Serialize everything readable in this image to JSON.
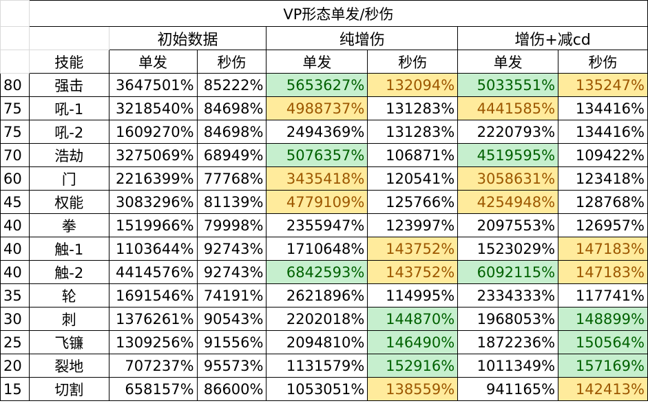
{
  "title": "VP形态单发/秒伤",
  "groups": {
    "initial": "初始数据",
    "pure": "纯增伤",
    "plus_cdr": "增伤+减cd"
  },
  "subheaders": {
    "skill": "技能",
    "single": "单发",
    "dps": "秒伤"
  },
  "colors": {
    "good_bg": "#c6efce",
    "good_fg": "#006100",
    "warn_bg": "#ffeb9c",
    "warn_fg": "#9c5700"
  },
  "rows": [
    {
      "level": "80",
      "skill": "强击",
      "init_single": "3647501%",
      "init_dps": "85222%",
      "pure_single": "5653627%",
      "pure_dps": "132094%",
      "cd_single": "5033551%",
      "cd_dps": "135247%"
    },
    {
      "level": "75",
      "skill": "吼-1",
      "init_single": "3218540%",
      "init_dps": "84698%",
      "pure_single": "4988737%",
      "pure_dps": "131283%",
      "cd_single": "4441585%",
      "cd_dps": "134416%"
    },
    {
      "level": "75",
      "skill": "吼-2",
      "init_single": "1609270%",
      "init_dps": "84698%",
      "pure_single": "2494369%",
      "pure_dps": "131283%",
      "cd_single": "2220793%",
      "cd_dps": "134416%"
    },
    {
      "level": "70",
      "skill": "浩劫",
      "init_single": "3275069%",
      "init_dps": "68949%",
      "pure_single": "5076357%",
      "pure_dps": "106871%",
      "cd_single": "4519595%",
      "cd_dps": "109422%"
    },
    {
      "level": "60",
      "skill": "门",
      "init_single": "2216399%",
      "init_dps": "77768%",
      "pure_single": "3435418%",
      "pure_dps": "120541%",
      "cd_single": "3058631%",
      "cd_dps": "123418%"
    },
    {
      "level": "45",
      "skill": "权能",
      "init_single": "3083296%",
      "init_dps": "81139%",
      "pure_single": "4779109%",
      "pure_dps": "125766%",
      "cd_single": "4254948%",
      "cd_dps": "128768%"
    },
    {
      "level": "40",
      "skill": "拳",
      "init_single": "1519966%",
      "init_dps": "79998%",
      "pure_single": "2355947%",
      "pure_dps": "123997%",
      "cd_single": "2097553%",
      "cd_dps": "126957%"
    },
    {
      "level": "40",
      "skill": "触-1",
      "init_single": "1103644%",
      "init_dps": "92743%",
      "pure_single": "1710648%",
      "pure_dps": "143752%",
      "cd_single": "1523029%",
      "cd_dps": "147183%"
    },
    {
      "level": "40",
      "skill": "触-2",
      "init_single": "4414576%",
      "init_dps": "92743%",
      "pure_single": "6842593%",
      "pure_dps": "143752%",
      "cd_single": "6092115%",
      "cd_dps": "147183%"
    },
    {
      "level": "35",
      "skill": "轮",
      "init_single": "1691546%",
      "init_dps": "74191%",
      "pure_single": "2621896%",
      "pure_dps": "114995%",
      "cd_single": "2334333%",
      "cd_dps": "117741%"
    },
    {
      "level": "30",
      "skill": "刺",
      "init_single": "1376261%",
      "init_dps": "90543%",
      "pure_single": "2202018%",
      "pure_dps": "144870%",
      "cd_single": "1968053%",
      "cd_dps": "148899%"
    },
    {
      "level": "25",
      "skill": "飞镰",
      "init_single": "1309256%",
      "init_dps": "91556%",
      "pure_single": "2094810%",
      "pure_dps": "146490%",
      "cd_single": "1872236%",
      "cd_dps": "150564%"
    },
    {
      "level": "20",
      "skill": "裂地",
      "init_single": "707237%",
      "init_dps": "95573%",
      "pure_single": "1131579%",
      "pure_dps": "152916%",
      "cd_single": "1011349%",
      "cd_dps": "157169%"
    },
    {
      "level": "15",
      "skill": "切割",
      "init_single": "658157%",
      "init_dps": "86600%",
      "pure_single": "1053051%",
      "pure_dps": "138559%",
      "cd_single": "941165%",
      "cd_dps": "142413%"
    }
  ]
}
